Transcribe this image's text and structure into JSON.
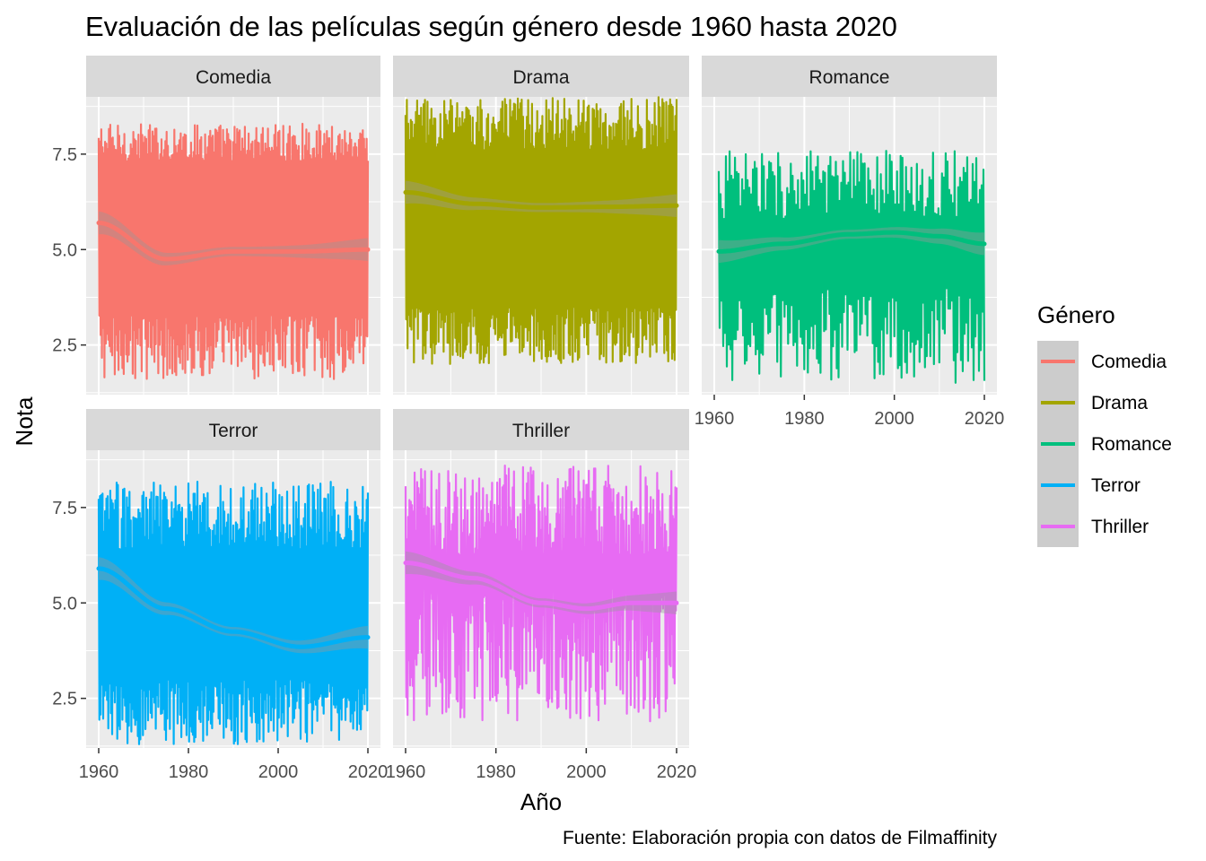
{
  "chart_data": {
    "type": "line",
    "title": "Evaluación de las películas según género desde 1960 hasta 2020",
    "xlabel": "Año",
    "ylabel": "Nota",
    "caption": "Fuente: Elaboración propia con datos de Filmaffinity",
    "xlim": [
      1960,
      2020
    ],
    "ylim": [
      1.2,
      9.0
    ],
    "x_ticks": [
      1960,
      1980,
      2000,
      2020
    ],
    "y_ticks": [
      2.5,
      5.0,
      7.5
    ],
    "x_tick_labels": [
      "1960",
      "1980",
      "2000",
      "2020"
    ],
    "y_tick_labels": [
      "2.5",
      "5.0",
      "7.5"
    ],
    "grid": true,
    "legend": {
      "title": "Género",
      "position": "right",
      "entries": [
        "Comedia",
        "Drama",
        "Romance",
        "Terror",
        "Thriller"
      ]
    },
    "panels": [
      {
        "name": "Comedia",
        "color": "#F8766D",
        "x_start": 1960,
        "x_end": 2020,
        "points_per_year": 7,
        "max_range": [
          7.3,
          8.3
        ],
        "min_range": [
          1.6,
          3.3
        ],
        "smooth": {
          "x": [
            1960,
            1975,
            1990,
            2005,
            2020
          ],
          "y": [
            5.7,
            4.75,
            4.95,
            4.95,
            5.0
          ]
        }
      },
      {
        "name": "Drama",
        "color": "#A3A500",
        "x_start": 1960,
        "x_end": 2020,
        "points_per_year": 7,
        "max_range": [
          7.6,
          9.0
        ],
        "min_range": [
          2.0,
          3.5
        ],
        "smooth": {
          "x": [
            1960,
            1975,
            1990,
            2005,
            2020
          ],
          "y": [
            6.5,
            6.2,
            6.1,
            6.12,
            6.15
          ]
        }
      },
      {
        "name": "Romance",
        "color": "#00BF7D",
        "x_start": 1961,
        "x_end": 2020,
        "points_per_year": 5,
        "max_range": [
          5.8,
          7.6
        ],
        "min_range": [
          1.5,
          4.0
        ],
        "smooth": {
          "x": [
            1961,
            1975,
            1990,
            2000,
            2010,
            2020
          ],
          "y": [
            4.95,
            5.15,
            5.4,
            5.45,
            5.35,
            5.15
          ]
        }
      },
      {
        "name": "Terror",
        "color": "#00B0F6",
        "x_start": 1960,
        "x_end": 2020,
        "points_per_year": 7,
        "max_range": [
          6.4,
          8.2
        ],
        "min_range": [
          1.3,
          3.0
        ],
        "smooth": {
          "x": [
            1960,
            1975,
            1990,
            2005,
            2020
          ],
          "y": [
            5.9,
            4.85,
            4.25,
            3.85,
            4.1
          ]
        }
      },
      {
        "name": "Thriller",
        "color": "#E76BF3",
        "x_start": 1960,
        "x_end": 2020,
        "points_per_year": 7,
        "max_range": [
          6.2,
          8.6
        ],
        "min_range": [
          1.9,
          5.5
        ],
        "smooth": {
          "x": [
            1960,
            1975,
            1990,
            2000,
            2010,
            2020
          ],
          "y": [
            6.05,
            5.65,
            5.0,
            4.85,
            5.0,
            5.0
          ]
        }
      }
    ]
  }
}
